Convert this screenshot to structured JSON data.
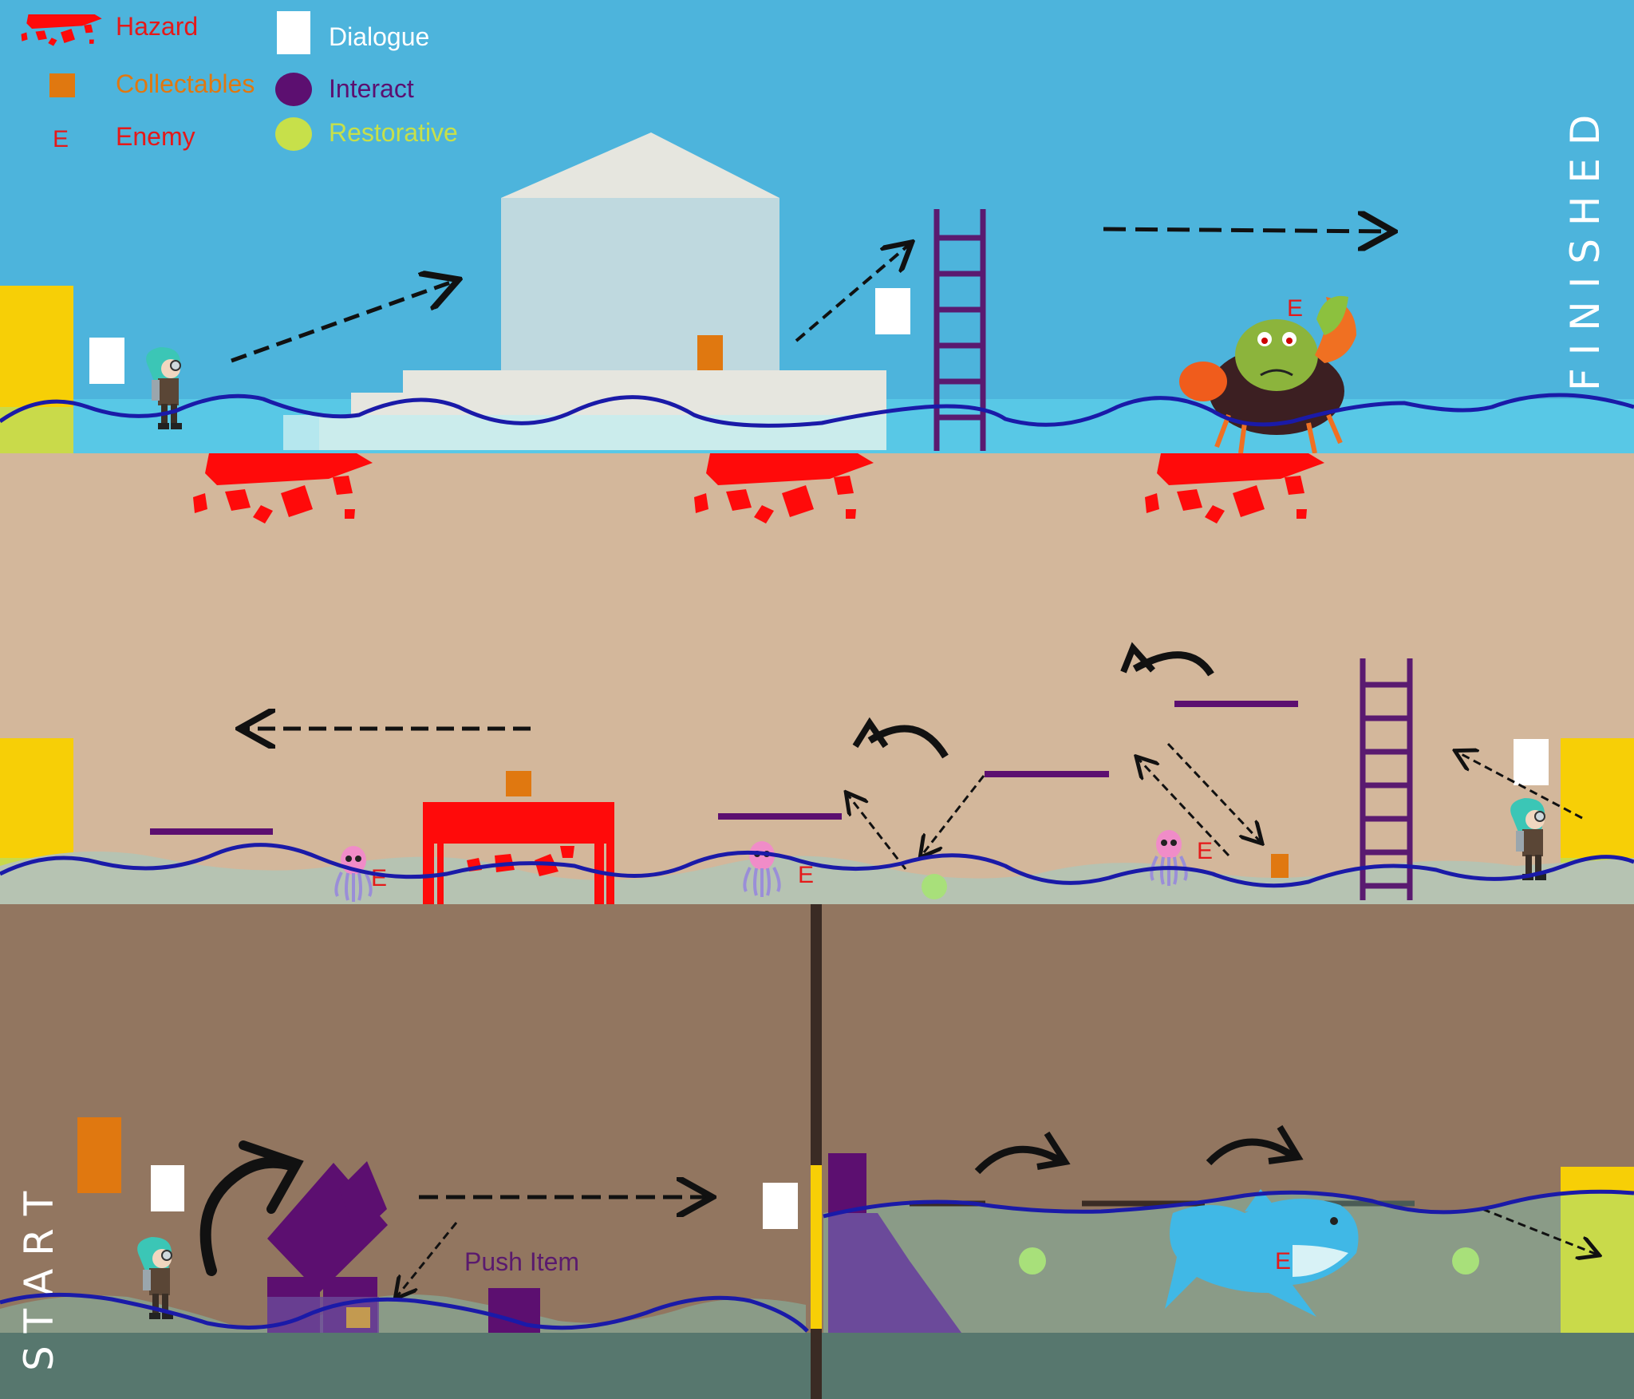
{
  "legend": {
    "items": [
      {
        "label": "Hazard",
        "color": "#e51919",
        "icon": "hazard-icon"
      },
      {
        "label": "Collectables",
        "color": "#e07810",
        "icon": "collectable-icon"
      },
      {
        "label": "Enemy",
        "color": "#e51919",
        "icon": "enemy-icon",
        "glyph": "E"
      },
      {
        "label": "Dialogue",
        "color": "#ffffff",
        "icon": "dialogue-icon"
      },
      {
        "label": "Interact",
        "color": "#5c0f70",
        "icon": "interact-icon"
      },
      {
        "label": "Restorative",
        "color": "#c7e04a",
        "icon": "restorative-icon"
      }
    ]
  },
  "labels": {
    "start": "S T A R T",
    "finished": "F I N I S H E D",
    "push_item": "Push Item",
    "enemy": "E"
  },
  "colors": {
    "sky": "#4db4dc",
    "sand": "#d3b79b",
    "dirt": "#927660",
    "floor": "#57776e",
    "water_line": "#1a1aa8",
    "hazard": "#ff0a0a",
    "interact": "#5c0f70",
    "collectable": "#e07810",
    "restorative": "#c7e04a",
    "exit_door": "#f7cf06"
  }
}
